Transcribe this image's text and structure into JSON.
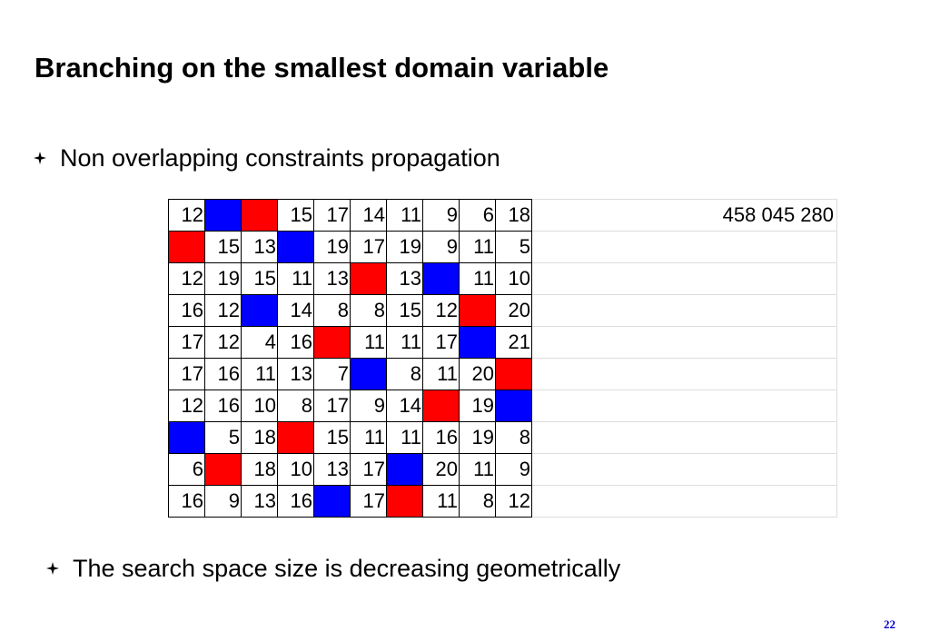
{
  "slide": {
    "title": "Branching on the smallest domain variable",
    "bullets": [
      {
        "icon": "diamond-bullet-icon",
        "text": "Non overlapping constraints propagation"
      },
      {
        "icon": "diamond-bullet-icon",
        "text": "The search space size is decreasing geometrically"
      }
    ],
    "page_number": "22"
  },
  "colors": {
    "red": "#ff0000",
    "blue": "#0000ff"
  },
  "grid": {
    "rows": [
      [
        "12",
        "blue",
        "red",
        "15",
        "17",
        "14",
        "11",
        "9",
        "6",
        "18"
      ],
      [
        "red",
        "15",
        "13",
        "blue",
        "19",
        "17",
        "19",
        "9",
        "11",
        "5"
      ],
      [
        "12",
        "19",
        "15",
        "11",
        "13",
        "red",
        "13",
        "blue",
        "11",
        "10"
      ],
      [
        "16",
        "12",
        "blue",
        "14",
        "8",
        "8",
        "15",
        "12",
        "red",
        "20"
      ],
      [
        "17",
        "12",
        "4",
        "16",
        "red",
        "11",
        "11",
        "17",
        "blue",
        "21"
      ],
      [
        "17",
        "16",
        "11",
        "13",
        "7",
        "blue",
        "8",
        "11",
        "20",
        "red"
      ],
      [
        "12",
        "16",
        "10",
        "8",
        "17",
        "9",
        "14",
        "red",
        "19",
        "blue"
      ],
      [
        "blue",
        "5",
        "18",
        "red",
        "15",
        "11",
        "11",
        "16",
        "19",
        "8"
      ],
      [
        "6",
        "red",
        "18",
        "10",
        "13",
        "17",
        "blue",
        "20",
        "11",
        "9"
      ],
      [
        "16",
        "9",
        "13",
        "16",
        "blue",
        "17",
        "red",
        "11",
        "8",
        "12"
      ]
    ],
    "search_space_counts": [
      "458 045 280",
      "",
      "",
      "",
      "",
      "",
      "",
      "",
      "",
      ""
    ]
  }
}
